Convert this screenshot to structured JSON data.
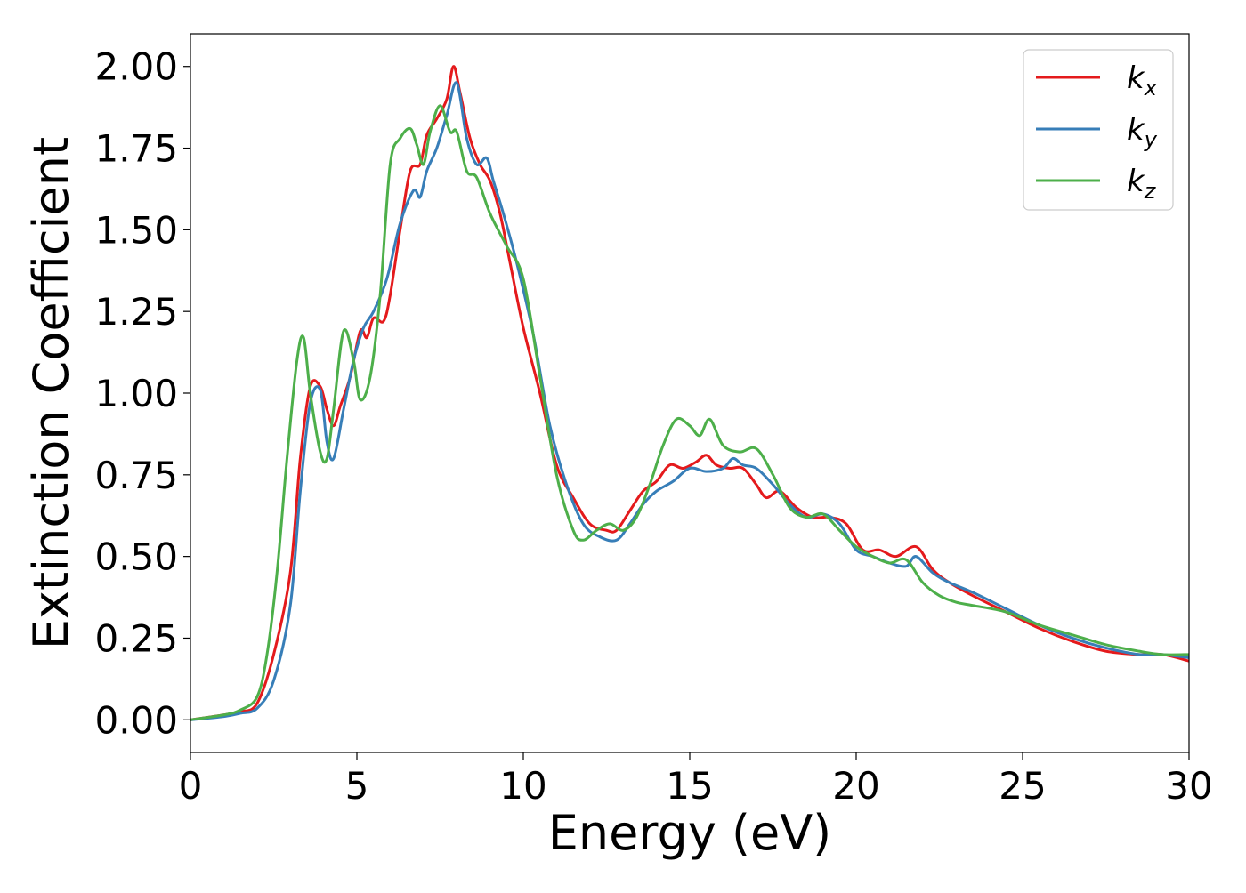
{
  "chart_data": {
    "type": "line",
    "xlabel": "Energy (eV)",
    "ylabel": "Extinction Coefficient",
    "xlim": [
      0,
      30
    ],
    "ylim": [
      -0.1,
      2.1
    ],
    "x_ticks": [
      "0",
      "5",
      "10",
      "15",
      "20",
      "25",
      "30"
    ],
    "y_ticks": [
      "0.00",
      "0.25",
      "0.50",
      "0.75",
      "1.00",
      "1.25",
      "1.50",
      "1.75",
      "2.00"
    ],
    "legend_position": "top-right",
    "grid": false,
    "series": [
      {
        "name": "k",
        "subscript": "x",
        "color": "#e41a1c",
        "x": [
          0,
          1,
          1.5,
          2,
          2.5,
          3,
          3.3,
          3.6,
          3.9,
          4.1,
          4.3,
          4.5,
          4.8,
          5.1,
          5.3,
          5.5,
          5.8,
          6.0,
          6.3,
          6.6,
          6.9,
          7.1,
          7.4,
          7.7,
          7.9,
          8.1,
          8.4,
          8.7,
          9.0,
          9.3,
          9.6,
          10.0,
          10.5,
          11.0,
          11.5,
          12.0,
          12.5,
          12.8,
          13.2,
          13.6,
          14.0,
          14.4,
          14.8,
          15.2,
          15.5,
          15.8,
          16.2,
          16.6,
          17.0,
          17.3,
          17.7,
          18.2,
          18.7,
          19.2,
          19.7,
          20.2,
          20.7,
          21.2,
          21.8,
          22.3,
          22.8,
          23.5,
          24.5,
          25.5,
          26.5,
          27.5,
          28.5,
          29.2,
          30
        ],
        "y": [
          0.0,
          0.015,
          0.025,
          0.05,
          0.2,
          0.45,
          0.8,
          1.02,
          1.02,
          0.95,
          0.9,
          0.96,
          1.05,
          1.19,
          1.17,
          1.23,
          1.22,
          1.3,
          1.5,
          1.68,
          1.7,
          1.79,
          1.84,
          1.9,
          2.0,
          1.92,
          1.78,
          1.7,
          1.65,
          1.55,
          1.4,
          1.2,
          1.0,
          0.78,
          0.68,
          0.6,
          0.58,
          0.58,
          0.64,
          0.7,
          0.73,
          0.78,
          0.77,
          0.79,
          0.81,
          0.78,
          0.77,
          0.77,
          0.72,
          0.68,
          0.7,
          0.65,
          0.62,
          0.62,
          0.6,
          0.52,
          0.52,
          0.5,
          0.53,
          0.46,
          0.42,
          0.38,
          0.33,
          0.28,
          0.24,
          0.21,
          0.2,
          0.2,
          0.18
        ]
      },
      {
        "name": "k",
        "subscript": "y",
        "color": "#377eb8",
        "x": [
          0,
          1,
          1.5,
          2,
          2.5,
          3,
          3.3,
          3.6,
          3.9,
          4.1,
          4.3,
          4.6,
          4.9,
          5.2,
          5.5,
          5.9,
          6.3,
          6.7,
          6.9,
          7.1,
          7.4,
          7.7,
          8.0,
          8.3,
          8.6,
          8.9,
          9.1,
          9.4,
          9.8,
          10.3,
          10.8,
          11.3,
          11.8,
          12.3,
          12.8,
          13.2,
          13.6,
          14.0,
          14.5,
          15.0,
          15.5,
          16.0,
          16.3,
          16.6,
          17.0,
          17.5,
          18.0,
          18.5,
          19.0,
          19.5,
          20.0,
          20.5,
          21.0,
          21.5,
          21.8,
          22.3,
          22.8,
          23.5,
          24.5,
          25.5,
          26.5,
          27.5,
          28.5,
          29.2,
          30
        ],
        "y": [
          0.0,
          0.01,
          0.02,
          0.035,
          0.12,
          0.35,
          0.7,
          0.97,
          1.01,
          0.85,
          0.8,
          0.95,
          1.1,
          1.2,
          1.25,
          1.35,
          1.52,
          1.62,
          1.6,
          1.68,
          1.75,
          1.85,
          1.95,
          1.78,
          1.7,
          1.72,
          1.65,
          1.55,
          1.4,
          1.18,
          0.9,
          0.72,
          0.6,
          0.56,
          0.55,
          0.6,
          0.66,
          0.7,
          0.73,
          0.77,
          0.76,
          0.77,
          0.8,
          0.78,
          0.77,
          0.72,
          0.66,
          0.62,
          0.63,
          0.6,
          0.52,
          0.5,
          0.48,
          0.47,
          0.5,
          0.45,
          0.42,
          0.39,
          0.34,
          0.29,
          0.25,
          0.22,
          0.2,
          0.2,
          0.19
        ]
      },
      {
        "name": "k",
        "subscript": "z",
        "color": "#4daf4a",
        "x": [
          0,
          1,
          1.5,
          2,
          2.3,
          2.6,
          2.9,
          3.2,
          3.4,
          3.6,
          3.9,
          4.1,
          4.3,
          4.6,
          4.9,
          5.1,
          5.4,
          5.7,
          6.0,
          6.3,
          6.6,
          6.8,
          7.0,
          7.2,
          7.5,
          7.8,
          8.0,
          8.3,
          8.6,
          9.0,
          9.5,
          10.0,
          10.5,
          11.0,
          11.5,
          11.8,
          12.2,
          12.6,
          13.0,
          13.4,
          13.8,
          14.2,
          14.6,
          15.0,
          15.3,
          15.6,
          16.0,
          16.5,
          17.0,
          17.5,
          18.0,
          18.5,
          19.0,
          19.5,
          20.0,
          20.5,
          21.0,
          21.5,
          22.0,
          22.5,
          23.0,
          23.5,
          24.5,
          25.5,
          26.5,
          27.5,
          28.5,
          29.2,
          30
        ],
        "y": [
          0.0,
          0.015,
          0.03,
          0.07,
          0.2,
          0.45,
          0.8,
          1.1,
          1.17,
          1.0,
          0.82,
          0.8,
          0.95,
          1.19,
          1.1,
          0.98,
          1.05,
          1.3,
          1.7,
          1.78,
          1.81,
          1.76,
          1.7,
          1.8,
          1.88,
          1.8,
          1.8,
          1.68,
          1.66,
          1.55,
          1.45,
          1.35,
          1.05,
          0.75,
          0.58,
          0.55,
          0.58,
          0.6,
          0.58,
          0.62,
          0.72,
          0.84,
          0.92,
          0.9,
          0.87,
          0.92,
          0.84,
          0.82,
          0.83,
          0.75,
          0.65,
          0.62,
          0.63,
          0.58,
          0.53,
          0.5,
          0.48,
          0.49,
          0.42,
          0.38,
          0.36,
          0.35,
          0.33,
          0.29,
          0.26,
          0.23,
          0.21,
          0.2,
          0.2
        ]
      }
    ]
  }
}
